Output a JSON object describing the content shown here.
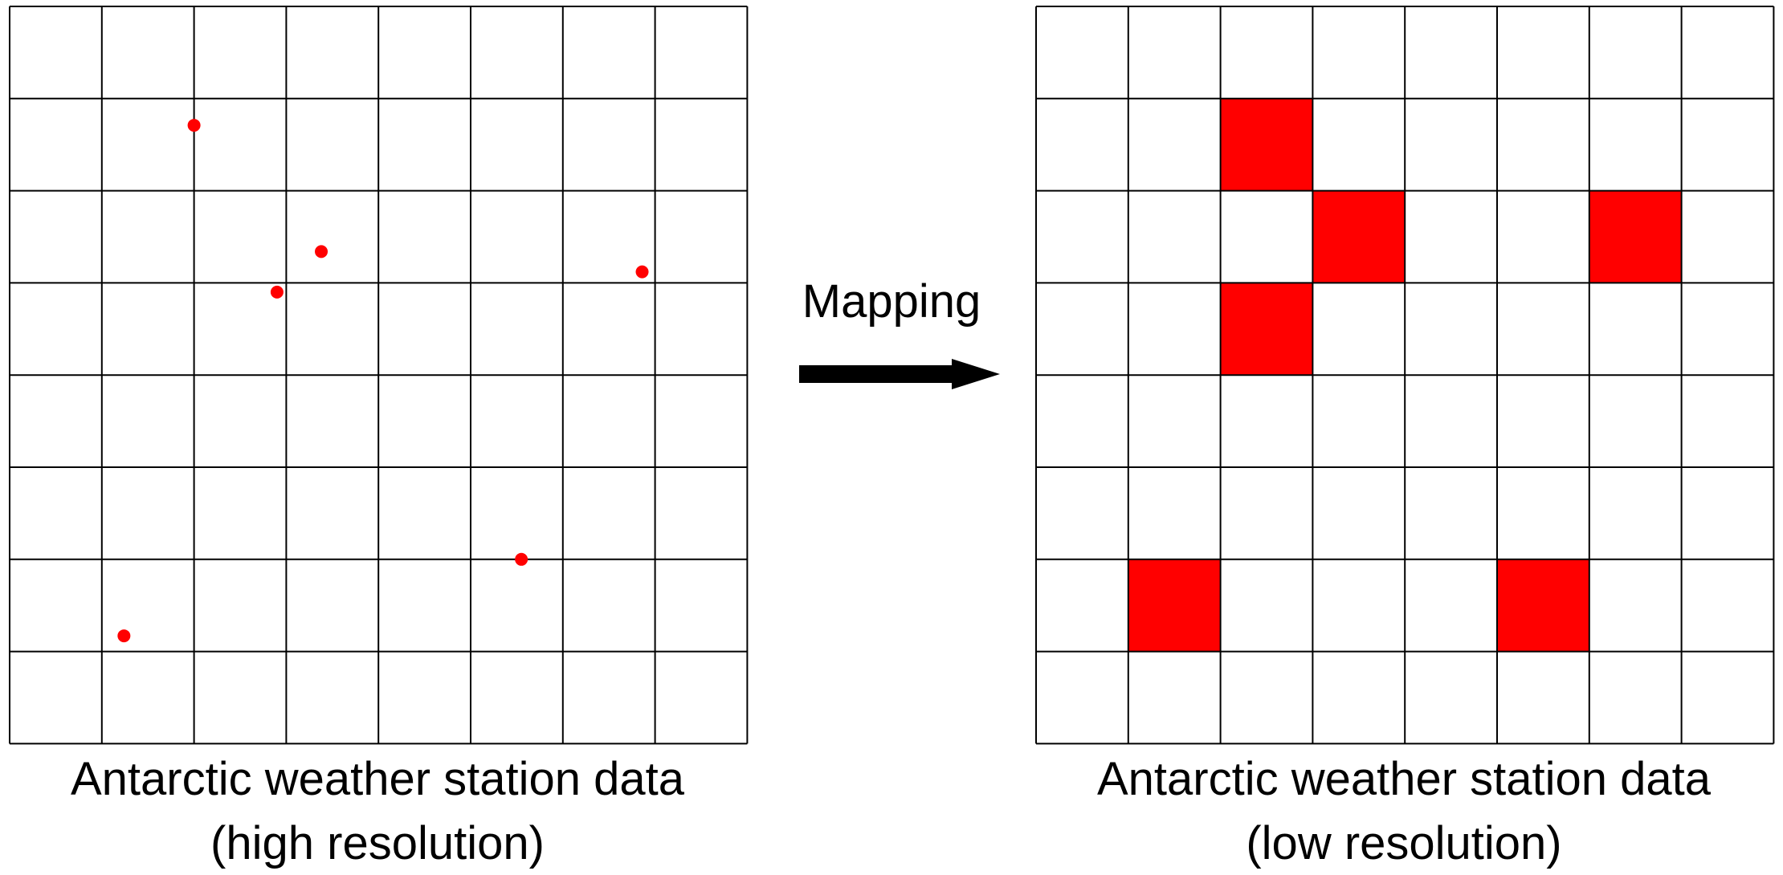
{
  "left_panel": {
    "caption_line1": "Antarctic weather station data",
    "caption_line2": "(high resolution)",
    "grid_size": 8,
    "station_color": "#ff0000",
    "stations": [
      {
        "col": 2.0,
        "row": 1.29
      },
      {
        "col": 3.38,
        "row": 2.66
      },
      {
        "col": 2.9,
        "row": 3.1
      },
      {
        "col": 6.86,
        "row": 2.88
      },
      {
        "col": 5.55,
        "row": 6.0
      },
      {
        "col": 1.24,
        "row": 6.83
      }
    ]
  },
  "mapping": {
    "label": "Mapping",
    "arrow_icon": "right-arrow-icon",
    "arrow_color": "#000000"
  },
  "right_panel": {
    "caption_line1": "Antarctic weather station data",
    "caption_line2": "(low resolution)",
    "grid_size": 8,
    "fill_color": "#ff0000",
    "filled_cells": [
      {
        "col": 2,
        "row": 1
      },
      {
        "col": 3,
        "row": 2
      },
      {
        "col": 6,
        "row": 2
      },
      {
        "col": 2,
        "row": 3
      },
      {
        "col": 1,
        "row": 6
      },
      {
        "col": 5,
        "row": 6
      }
    ]
  }
}
